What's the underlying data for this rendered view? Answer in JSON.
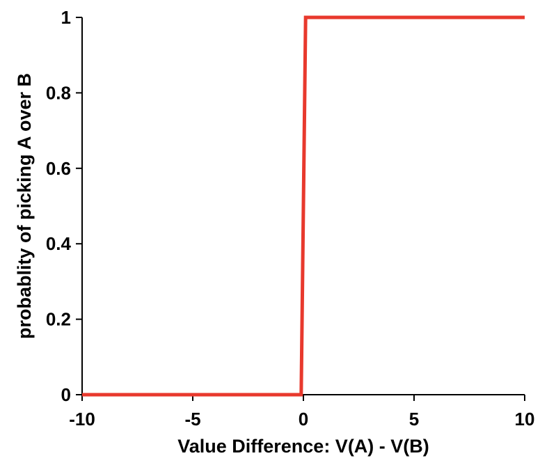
{
  "chart_data": {
    "type": "line",
    "title": "",
    "xlabel": "Value Difference: V(A) - V(B)",
    "ylabel": "probablity of picking A over B",
    "xlim": [
      -10,
      10
    ],
    "ylim": [
      0,
      1
    ],
    "xticks": [
      -10,
      -5,
      0,
      5,
      10
    ],
    "xtick_labels": [
      "-10",
      "-5",
      "0",
      "5",
      "10"
    ],
    "yticks": [
      0,
      0.2,
      0.4,
      0.6,
      0.8,
      1
    ],
    "ytick_labels": [
      "0",
      "0.2",
      "0.4",
      "0.6",
      "0.8",
      "1"
    ],
    "grid": false,
    "legend": "none",
    "series": [
      {
        "color": "#e8392d",
        "x": [
          -10,
          -0.1,
          0.1,
          10
        ],
        "y": [
          0,
          0,
          1,
          1
        ]
      }
    ]
  }
}
